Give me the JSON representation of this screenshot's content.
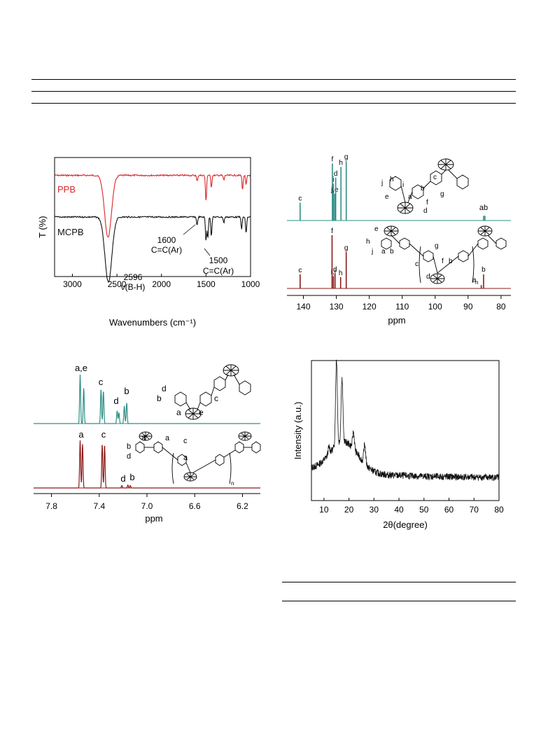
{
  "colors": {
    "ppb": "#d9262b",
    "mcpb": "#111111",
    "teal": "#2f8f86",
    "dark_red": "#8b1a1a",
    "black": "#000000"
  },
  "ir": {
    "type": "line",
    "ylabel": "T (%)",
    "xlabel": "Wavenumbers (cm⁻¹)",
    "xlim": [
      3200,
      1000
    ],
    "xticks": [
      3000,
      2500,
      2000,
      1500,
      1000
    ],
    "x_tick_labels": [
      "3000",
      "2500",
      "2000",
      "1500",
      "1000"
    ],
    "series": [
      {
        "name": "PPB",
        "baseline": 0.15,
        "peaks": [
          [
            2600,
            0.52
          ],
          [
            1500,
            0.22
          ],
          [
            1440,
            0.1
          ],
          [
            1090,
            0.12
          ],
          [
            1050,
            0.08
          ],
          [
            1300,
            0.04
          ],
          [
            1600,
            0.05
          ]
        ]
      },
      {
        "name": "MCPB",
        "baseline": 0.5,
        "peaks": [
          [
            2596,
            0.55
          ],
          [
            1600,
            0.07
          ],
          [
            1500,
            0.2
          ],
          [
            1480,
            0.18
          ],
          [
            1440,
            0.16
          ],
          [
            1100,
            0.1
          ],
          [
            1050,
            0.14
          ],
          [
            1300,
            0.05
          ]
        ]
      }
    ],
    "annotations": [
      {
        "id": "peak_2596",
        "lines": [
          "2596",
          "ν(B-H)"
        ]
      },
      {
        "id": "peak_1600",
        "lines": [
          "1600",
          "C=C(Ar)"
        ]
      },
      {
        "id": "peak_1500",
        "lines": [
          "1500",
          "C=C(Ar)"
        ]
      }
    ]
  },
  "cnmr": {
    "type": "line",
    "xlabel": "ppm",
    "xlim": [
      145,
      77
    ],
    "x_tick_labels": [
      "140",
      "130",
      "120",
      "110",
      "100",
      "90",
      "80"
    ],
    "xticks": [
      140,
      130,
      120,
      110,
      100,
      90,
      80
    ],
    "top_peaks": [
      {
        "ppm": 141,
        "h": 0.3,
        "label": "c"
      },
      {
        "ppm": 131.2,
        "h": 0.96,
        "label": "f"
      },
      {
        "ppm": 130.9,
        "h": 0.62,
        "label": "i"
      },
      {
        "ppm": 130.5,
        "h": 0.45,
        "label": "j,e"
      },
      {
        "ppm": 130.2,
        "h": 0.72,
        "label": "d"
      },
      {
        "ppm": 128.6,
        "h": 0.9,
        "label": "h"
      },
      {
        "ppm": 127.0,
        "h": 1.0,
        "label": "g"
      },
      {
        "ppm": 85.3,
        "h": 0.08,
        "label": "a"
      },
      {
        "ppm": 84.9,
        "h": 0.08,
        "label": "b"
      }
    ],
    "bottom_peaks": [
      {
        "ppm": 141,
        "h": 0.25,
        "label": "c"
      },
      {
        "ppm": 131.3,
        "h": 0.95,
        "label": "f"
      },
      {
        "ppm": 130.9,
        "h": 0.22,
        "label": "i,j"
      },
      {
        "ppm": 130.4,
        "h": 0.26,
        "label": "d"
      },
      {
        "ppm": 128.7,
        "h": 0.2,
        "label": "h"
      },
      {
        "ppm": 127.0,
        "h": 0.65,
        "label": "g"
      },
      {
        "ppm": 86.0,
        "h": 0.06,
        "label": "a"
      },
      {
        "ppm": 85.3,
        "h": 0.25,
        "label": "b"
      }
    ],
    "top_ab_label": "ab",
    "structure_labels_top": [
      "j",
      "h",
      "i",
      "e",
      "a",
      "c",
      "b",
      "g",
      "f",
      "d"
    ],
    "structure_labels_bottom": [
      "e",
      "h",
      "j",
      "a",
      "b",
      "g",
      "c",
      "d",
      "f",
      "b",
      "n"
    ]
  },
  "hnmr": {
    "type": "line",
    "xlabel": "ppm",
    "xlim": [
      7.95,
      6.05
    ],
    "xticks": [
      7.8,
      7.4,
      7.0,
      6.6,
      6.2
    ],
    "x_tick_labels": [
      "7.8",
      "7.4",
      "7.0",
      "6.6",
      "6.2"
    ],
    "top_peaks": [
      {
        "ppm": 7.56,
        "h": 1.0
      },
      {
        "ppm": 7.53,
        "h": 0.72
      },
      {
        "ppm": 7.385,
        "h": 0.7
      },
      {
        "ppm": 7.365,
        "h": 0.66
      },
      {
        "ppm": 7.25,
        "h": 0.26
      },
      {
        "ppm": 7.235,
        "h": 0.22
      },
      {
        "ppm": 7.19,
        "h": 0.36
      },
      {
        "ppm": 7.17,
        "h": 0.42
      }
    ],
    "bottom_peaks": [
      {
        "ppm": 7.56,
        "h": 1.0
      },
      {
        "ppm": 7.54,
        "h": 0.92
      },
      {
        "ppm": 7.375,
        "h": 0.92
      },
      {
        "ppm": 7.355,
        "h": 0.9
      },
      {
        "ppm": 7.21,
        "h": 0.05
      },
      {
        "ppm": 7.16,
        "h": 0.06
      },
      {
        "ppm": 7.14,
        "h": 0.05
      }
    ],
    "top_labels": [
      "a,e",
      "c",
      "d",
      "b"
    ],
    "bottom_labels": [
      "a",
      "c",
      "d",
      "b"
    ],
    "structure_labels_top": [
      "d",
      "b",
      "a",
      "c",
      "e"
    ],
    "structure_labels_bottom": [
      "a",
      "a",
      "b",
      "d",
      "c",
      "a",
      "n"
    ]
  },
  "xrd": {
    "type": "line",
    "ylabel": "Intensity (a.u.)",
    "xlabel": "2θ(degree)",
    "xlim": [
      5,
      80
    ],
    "xticks": [
      10,
      20,
      30,
      40,
      50,
      60,
      70,
      80
    ],
    "x_tick_labels": [
      "10",
      "20",
      "30",
      "40",
      "50",
      "60",
      "70",
      "80"
    ],
    "peaks": [
      [
        15.0,
        0.62
      ],
      [
        17.2,
        0.46
      ],
      [
        21.8,
        0.12
      ],
      [
        26.3,
        0.14
      ],
      [
        12.0,
        0.05
      ]
    ]
  }
}
